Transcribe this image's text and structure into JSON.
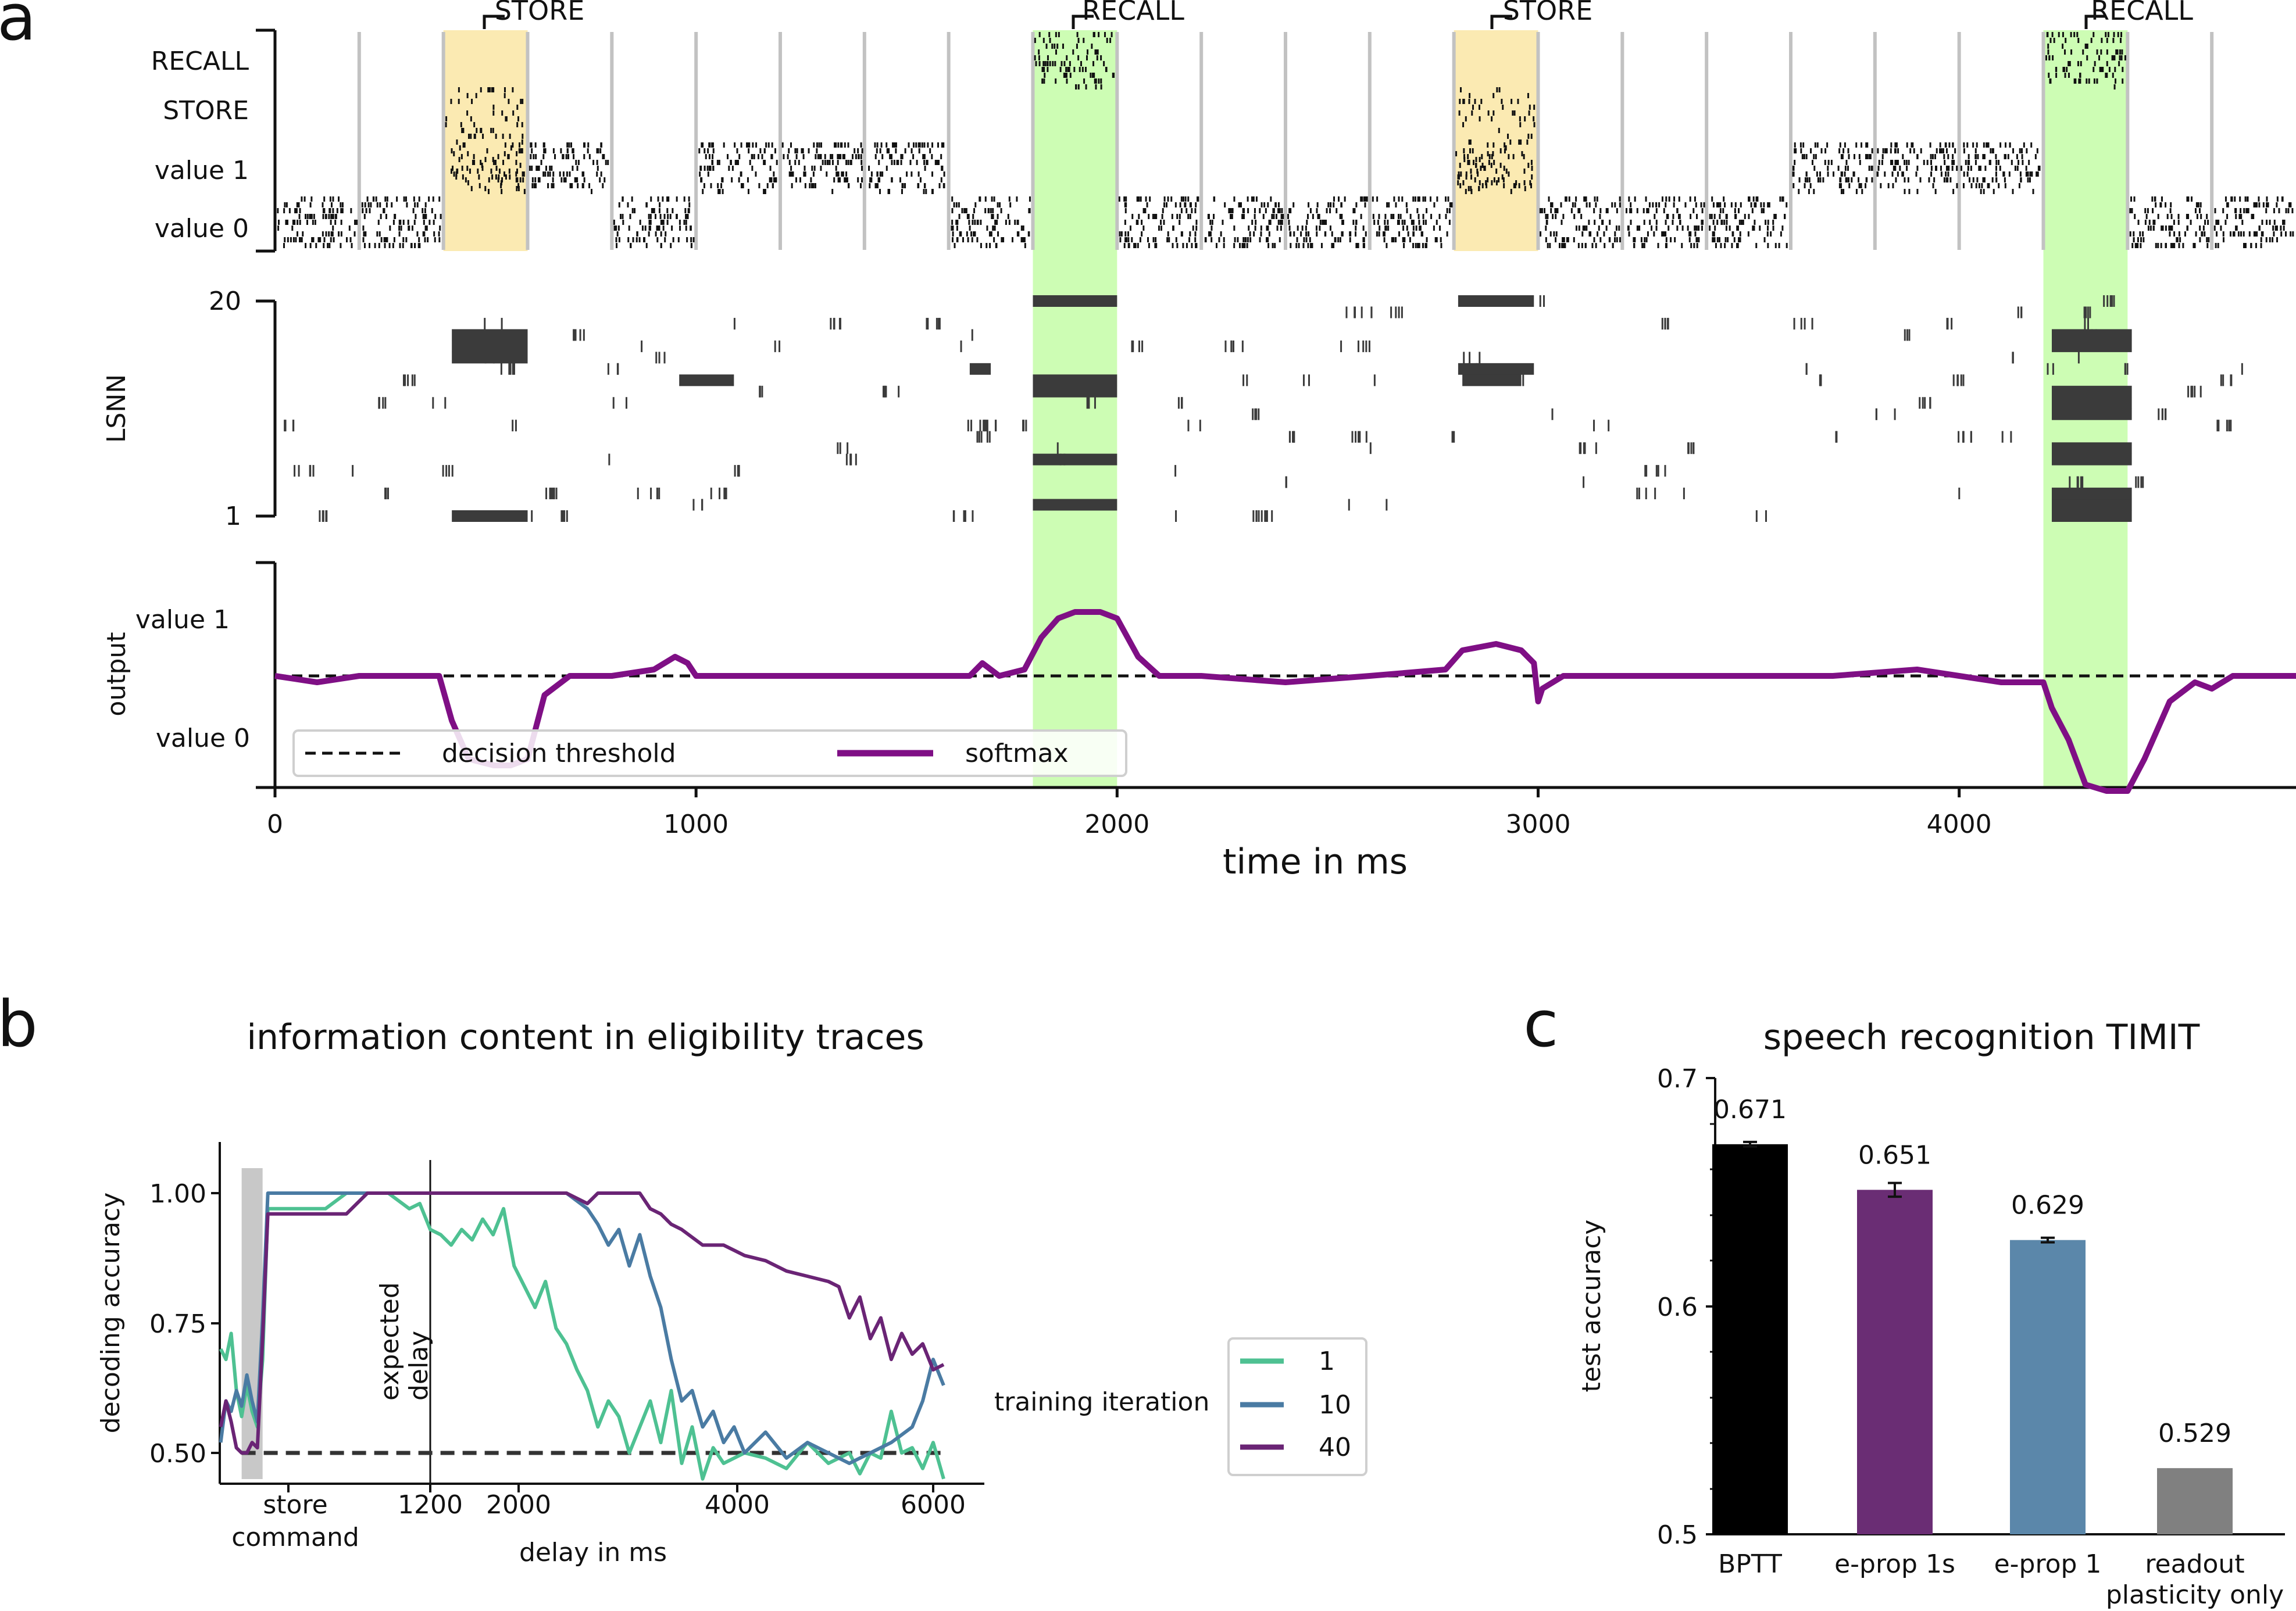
{
  "colors": {
    "store_band": "#fbeab2",
    "recall_band": "#cdfdb4",
    "spike": "#111111",
    "lsnn_spike": "#3b3b3b",
    "separator": "#c2c2c2",
    "softmax": "#7f0f85",
    "iter_1": "#4ec192",
    "iter_10": "#4a7ba3",
    "iter_40": "#6a2475",
    "bptt": "#000000",
    "eprop_1s": "#6a2d74",
    "eprop_1": "#5b87aa",
    "readout": "#808080"
  },
  "panel_a": {
    "letter": "a",
    "markers": [
      "STORE",
      "RECALL",
      "STORE",
      "RECALL"
    ],
    "input_labels": [
      "RECALL",
      "STORE",
      "value 1",
      "value 0"
    ],
    "lsnn_label": "LSNN",
    "lsnn_ticks": [
      "20",
      "1"
    ],
    "output_label": "output",
    "output_ticks": [
      "value 1",
      "value 0"
    ],
    "legend": [
      "decision threshold",
      "softmax"
    ],
    "xlabel": "time in ms",
    "xticks": [
      "0",
      "1000",
      "2000",
      "3000",
      "4000"
    ]
  },
  "panel_b": {
    "letter": "b",
    "title": "information content in eligibility traces",
    "ylabel": "decoding accuracy",
    "yticks": [
      "1.00",
      "0.75",
      "0.50"
    ],
    "xticks": [
      "store",
      "1200",
      "2000",
      "4000",
      "6000"
    ],
    "xtick_store_line2": "command",
    "xlabel": "delay in ms",
    "annotation": [
      "expected",
      "delay"
    ],
    "legend_title": "training iteration",
    "legend": [
      "1",
      "10",
      "40"
    ]
  },
  "panel_c": {
    "letter": "c",
    "title": "speech recognition TIMIT",
    "ylabel": "test accuracy",
    "yticks": [
      "0.7",
      "0.6",
      "0.5"
    ],
    "categories": [
      "BPTT",
      "e-prop 1s",
      "e-prop 1",
      "readout"
    ],
    "category_line2": "plasticity only",
    "value_labels": [
      "0.671",
      "0.651",
      "0.629",
      "0.529"
    ]
  },
  "chart_data": [
    {
      "type": "line",
      "xlabel": "time in ms",
      "ylabel": "output",
      "xlim": [
        0,
        4800
      ],
      "x_ticks": [
        0,
        1000,
        2000,
        3000,
        4000
      ],
      "store_windows_ms": [
        [
          400,
          600
        ],
        [
          2800,
          3000
        ]
      ],
      "recall_windows_ms": [
        [
          1800,
          2000
        ],
        [
          4200,
          4400
        ]
      ],
      "series": [
        {
          "name": "decision threshold",
          "x": [
            0,
            4800
          ],
          "y": [
            0.5,
            0.5
          ]
        },
        {
          "name": "softmax",
          "x": [
            0,
            100,
            200,
            300,
            390,
            420,
            460,
            520,
            560,
            600,
            640,
            700,
            800,
            900,
            950,
            980,
            1000,
            1100,
            1300,
            1500,
            1650,
            1680,
            1720,
            1780,
            1820,
            1860,
            1900,
            1960,
            2000,
            2050,
            2100,
            2200,
            2400,
            2600,
            2780,
            2820,
            2900,
            2960,
            2990,
            3000,
            3010,
            3060,
            3100,
            3300,
            3500,
            3700,
            3900,
            4000,
            4100,
            4200,
            4220,
            4260,
            4300,
            4350,
            4400,
            4440,
            4500,
            4560,
            4600,
            4650,
            4700,
            4800
          ],
          "y": [
            0.5,
            0.49,
            0.5,
            0.5,
            0.5,
            0.43,
            0.37,
            0.36,
            0.36,
            0.37,
            0.47,
            0.5,
            0.5,
            0.51,
            0.53,
            0.52,
            0.5,
            0.5,
            0.5,
            0.5,
            0.5,
            0.52,
            0.5,
            0.51,
            0.56,
            0.59,
            0.6,
            0.6,
            0.59,
            0.53,
            0.5,
            0.5,
            0.49,
            0.5,
            0.51,
            0.54,
            0.55,
            0.54,
            0.52,
            0.46,
            0.48,
            0.5,
            0.5,
            0.5,
            0.5,
            0.5,
            0.51,
            0.5,
            0.49,
            0.49,
            0.45,
            0.4,
            0.33,
            0.32,
            0.32,
            0.37,
            0.46,
            0.49,
            0.48,
            0.5,
            0.5,
            0.5
          ]
        }
      ]
    },
    {
      "type": "line",
      "title": "information content in eligibility traces",
      "xlabel": "delay in ms",
      "ylabel": "decoding accuracy",
      "xlim": [
        -1000,
        6400
      ],
      "ylim": [
        0.45,
        1.05
      ],
      "y_ticks": [
        0.5,
        0.75,
        1.0
      ],
      "x_ticks": [
        1200,
        2000,
        4000,
        6000
      ],
      "reference_lines": {
        "chance_level": 0.5,
        "expected_delay_ms": 1200
      },
      "store_command_window_ms": [
        -600,
        -400
      ],
      "series": [
        {
          "name": "1",
          "x": [
            -800,
            -750,
            -700,
            -650,
            -600,
            -550,
            -500,
            -450,
            -400,
            -350,
            -300,
            -200,
            0,
            200,
            400,
            600,
            800,
            1000,
            1100,
            1200,
            1300,
            1400,
            1500,
            1600,
            1700,
            1800,
            1900,
            2000,
            2100,
            2200,
            2300,
            2400,
            2500,
            2600,
            2700,
            2800,
            2900,
            3000,
            3100,
            3200,
            3300,
            3400,
            3500,
            3600,
            3700,
            3800,
            3900,
            4000,
            4200,
            4400,
            4600,
            4800,
            5000,
            5200,
            5300,
            5400,
            5500,
            5600,
            5700,
            5800,
            5900,
            6000,
            6100
          ],
          "y": [
            0.7,
            0.68,
            0.73,
            0.62,
            0.57,
            0.63,
            0.58,
            0.55,
            0.68,
            0.97,
            0.97,
            0.97,
            0.97,
            0.97,
            1.0,
            1.0,
            1.0,
            0.97,
            0.98,
            0.93,
            0.92,
            0.9,
            0.93,
            0.91,
            0.95,
            0.92,
            0.97,
            0.86,
            0.82,
            0.78,
            0.83,
            0.74,
            0.71,
            0.66,
            0.62,
            0.55,
            0.6,
            0.57,
            0.5,
            0.55,
            0.6,
            0.52,
            0.62,
            0.48,
            0.55,
            0.45,
            0.51,
            0.48,
            0.5,
            0.49,
            0.47,
            0.52,
            0.48,
            0.5,
            0.46,
            0.5,
            0.49,
            0.58,
            0.5,
            0.51,
            0.47,
            0.52,
            0.45
          ]
        },
        {
          "name": "10",
          "x": [
            -800,
            -750,
            -700,
            -650,
            -600,
            -550,
            -500,
            -450,
            -400,
            -350,
            -300,
            0,
            300,
            600,
            1000,
            1500,
            2000,
            2500,
            2700,
            2800,
            2900,
            3000,
            3100,
            3200,
            3300,
            3400,
            3500,
            3600,
            3700,
            3800,
            3900,
            4000,
            4100,
            4200,
            4400,
            4600,
            4800,
            5000,
            5200,
            5400,
            5600,
            5800,
            5900,
            6000,
            6100
          ],
          "y": [
            0.52,
            0.6,
            0.58,
            0.62,
            0.59,
            0.65,
            0.6,
            0.56,
            0.76,
            1.0,
            1.0,
            1.0,
            1.0,
            1.0,
            1.0,
            1.0,
            1.0,
            1.0,
            0.97,
            0.94,
            0.9,
            0.93,
            0.86,
            0.92,
            0.84,
            0.78,
            0.68,
            0.6,
            0.62,
            0.55,
            0.58,
            0.52,
            0.55,
            0.5,
            0.54,
            0.49,
            0.52,
            0.5,
            0.48,
            0.5,
            0.52,
            0.55,
            0.6,
            0.68,
            0.63
          ]
        },
        {
          "name": "40",
          "x": [
            -800,
            -750,
            -700,
            -650,
            -600,
            -550,
            -500,
            -450,
            -400,
            -350,
            -300,
            0,
            200,
            400,
            600,
            800,
            1000,
            1500,
            2000,
            2500,
            2600,
            2700,
            2800,
            3000,
            3200,
            3300,
            3400,
            3500,
            3600,
            3800,
            4000,
            4200,
            4400,
            4600,
            4800,
            5000,
            5100,
            5200,
            5300,
            5400,
            5500,
            5600,
            5700,
            5800,
            5900,
            6000,
            6100
          ],
          "y": [
            0.55,
            0.6,
            0.56,
            0.51,
            0.5,
            0.5,
            0.52,
            0.51,
            0.72,
            0.96,
            0.96,
            0.96,
            0.96,
            0.96,
            1.0,
            1.0,
            1.0,
            1.0,
            1.0,
            1.0,
            0.99,
            0.98,
            1.0,
            1.0,
            1.0,
            0.97,
            0.96,
            0.94,
            0.93,
            0.9,
            0.9,
            0.88,
            0.87,
            0.85,
            0.84,
            0.83,
            0.82,
            0.76,
            0.8,
            0.72,
            0.76,
            0.68,
            0.73,
            0.69,
            0.71,
            0.66,
            0.67
          ]
        }
      ]
    },
    {
      "type": "bar",
      "title": "speech recognition TIMIT",
      "ylabel": "test accuracy",
      "ylim": [
        0.5,
        0.7
      ],
      "categories": [
        "BPTT",
        "e-prop 1s",
        "e-prop 1",
        "readout plasticity only"
      ],
      "values": [
        0.671,
        0.651,
        0.629,
        0.529
      ],
      "error": [
        0.001,
        0.003,
        0.001,
        0.0
      ]
    }
  ]
}
